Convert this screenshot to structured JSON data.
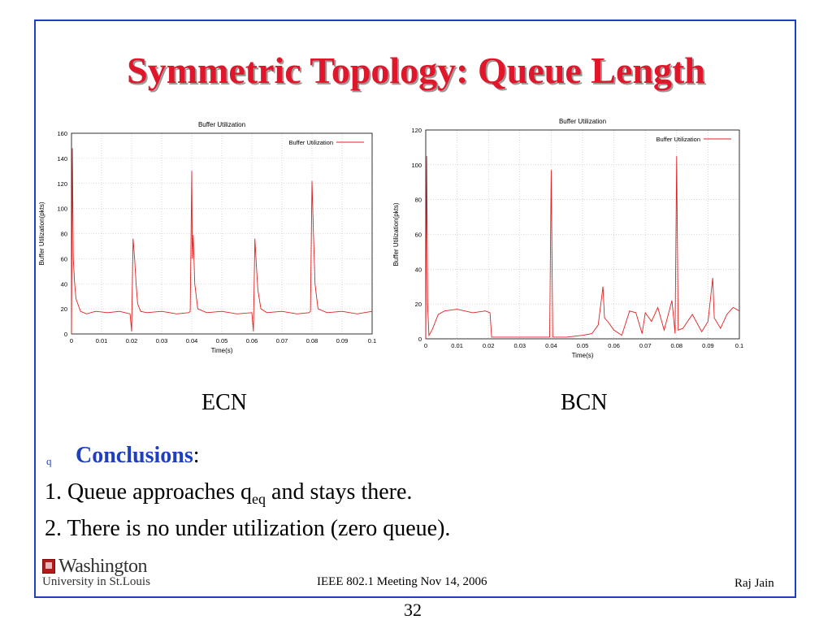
{
  "slide": {
    "title": "Symmetric Topology: Queue Length",
    "captions": {
      "left": "ECN",
      "right": "BCN"
    },
    "conclusions_label": "Conclusions",
    "bullet_glyph": "q",
    "line1_pre": "1. Queue approaches q",
    "line1_sub": "eq",
    "line1_post": " and stays there.",
    "line2": "2.  There is no under utilization (zero queue).",
    "logo_line1": "Washington",
    "logo_line2": "University in St.Louis",
    "footer_center": "IEEE 802.1 Meeting  Nov 14, 2006",
    "footer_right": "Raj Jain",
    "page_number": "32"
  },
  "chart_data": [
    {
      "type": "line",
      "title": "Buffer Utilization",
      "xlabel": "Time(s)",
      "ylabel": "Buffer Utilization(pkts)",
      "xlim": [
        0,
        0.1
      ],
      "ylim": [
        0,
        160
      ],
      "xticks": [
        "0",
        "0.01",
        "0.02",
        "0.03",
        "0.04",
        "0.05",
        "0.06",
        "0.07",
        "0.08",
        "0.09",
        "0.1"
      ],
      "yticks": [
        "0",
        "20",
        "40",
        "60",
        "80",
        "100",
        "120",
        "140",
        "160"
      ],
      "grid": true,
      "legend_position": "top-right",
      "series": [
        {
          "name": "Buffer Utilization",
          "color": "#e02020",
          "x": [
            0,
            0.0003,
            0.0006,
            0.001,
            0.0015,
            0.003,
            0.005,
            0.008,
            0.012,
            0.016,
            0.0195,
            0.02,
            0.0205,
            0.021,
            0.0215,
            0.022,
            0.023,
            0.025,
            0.03,
            0.035,
            0.039,
            0.0395,
            0.04,
            0.0402,
            0.0405,
            0.041,
            0.042,
            0.045,
            0.05,
            0.055,
            0.06,
            0.0605,
            0.061,
            0.0615,
            0.062,
            0.063,
            0.065,
            0.07,
            0.075,
            0.079,
            0.0795,
            0.08,
            0.0805,
            0.081,
            0.082,
            0.085,
            0.09,
            0.095,
            0.1
          ],
          "y": [
            0,
            148,
            60,
            42,
            28,
            18,
            16,
            18,
            17,
            18,
            16,
            2,
            76,
            60,
            40,
            24,
            18,
            17,
            18,
            16,
            17,
            18,
            130,
            60,
            79,
            40,
            20,
            17,
            18,
            16,
            17,
            2,
            76,
            55,
            35,
            20,
            17,
            18,
            16,
            17,
            18,
            122,
            80,
            40,
            20,
            17,
            18,
            16,
            18
          ]
        }
      ]
    },
    {
      "type": "line",
      "title": "Buffer Utilization",
      "xlabel": "Time(s)",
      "ylabel": "Buffer Utilization(pkts)",
      "xlim": [
        0,
        0.1
      ],
      "ylim": [
        0,
        120
      ],
      "xticks": [
        "0",
        "0.01",
        "0.02",
        "0.03",
        "0.04",
        "0.05",
        "0.06",
        "0.07",
        "0.08",
        "0.09",
        "0.1"
      ],
      "yticks": [
        "0",
        "20",
        "40",
        "60",
        "80",
        "100",
        "120"
      ],
      "grid": true,
      "legend_position": "top-right",
      "series": [
        {
          "name": "Buffer Utilization",
          "color": "#e02020",
          "x": [
            0,
            0.0003,
            0.0006,
            0.001,
            0.002,
            0.004,
            0.006,
            0.01,
            0.015,
            0.019,
            0.0205,
            0.021,
            0.025,
            0.03,
            0.035,
            0.0395,
            0.04,
            0.0405,
            0.045,
            0.05,
            0.053,
            0.055,
            0.0565,
            0.057,
            0.058,
            0.06,
            0.0625,
            0.065,
            0.067,
            0.069,
            0.07,
            0.072,
            0.074,
            0.076,
            0.0785,
            0.0795,
            0.08,
            0.0805,
            0.082,
            0.085,
            0.088,
            0.09,
            0.0915,
            0.092,
            0.094,
            0.096,
            0.098,
            0.1
          ],
          "y": [
            0,
            105,
            20,
            2,
            5,
            14,
            16,
            17,
            15,
            16,
            15,
            1,
            1,
            1,
            1,
            1,
            97,
            1,
            1,
            2,
            3,
            8,
            30,
            12,
            10,
            5,
            2,
            16,
            15,
            3,
            15,
            10,
            18,
            5,
            22,
            3,
            105,
            5,
            6,
            14,
            4,
            10,
            35,
            12,
            6,
            14,
            18,
            16
          ]
        }
      ]
    }
  ]
}
